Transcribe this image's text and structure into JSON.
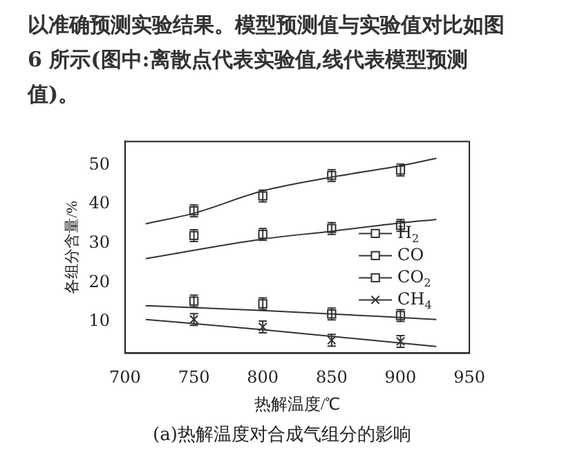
{
  "chart_data": {
    "type": "scatter",
    "xlabel": "热解温度/℃",
    "ylabel": "各组分含量/%",
    "annotations": [
      "以准确预测实验结果。模型预测值与实验值对比如图 6 所示(图中:离散点代表实验值,线代表模型预测值)。",
      "(a)热解温度对合成气组分的影响"
    ],
    "xlim": [
      700,
      950
    ],
    "xticks": [
      700,
      750,
      800,
      850,
      900,
      950
    ],
    "ylim": [
      2,
      56
    ],
    "yticks": [
      10,
      20,
      30,
      40,
      50
    ],
    "grid": false,
    "legend": "right",
    "x": [
      750,
      800,
      850,
      900
    ],
    "series": [
      {
        "name": "H$_{2}$",
        "marker": "square",
        "color": "#333333",
        "values": [
          38.3,
          42.1,
          47.3,
          48.7
        ],
        "errors": [
          1.5,
          1.5,
          1.5,
          1.5
        ]
      },
      {
        "name": "CO",
        "marker": "square",
        "color": "#333333",
        "values": [
          32.0,
          32.3,
          33.8,
          34.6
        ],
        "errors": [
          1.5,
          1.5,
          1.5,
          1.5
        ]
      },
      {
        "name": "CO$_{2}$",
        "marker": "square",
        "color": "#333333",
        "values": [
          15.3,
          14.6,
          12.0,
          11.6
        ],
        "errors": [
          1.5,
          1.5,
          1.5,
          1.5
        ]
      },
      {
        "name": "CH$_{4}$",
        "marker": "cross",
        "color": "#333333",
        "values": [
          10.6,
          8.7,
          5.3,
          5.0
        ],
        "errors": [
          1.5,
          1.5,
          1.5,
          1.5
        ]
      },
      {
        "type": "line",
        "color": "#333333",
        "x": [
          715,
          750,
          800,
          850,
          900,
          926
        ],
        "values": [
          35.0,
          37.7,
          43.4,
          46.9,
          49.8,
          51.7
        ]
      },
      {
        "type": "line",
        "color": "#333333",
        "x": [
          715,
          800,
          850,
          900,
          926
        ],
        "values": [
          26.1,
          31.1,
          33.1,
          35.2,
          36.1
        ]
      },
      {
        "type": "line",
        "color": "#333333",
        "x": [
          715,
          800,
          926
        ],
        "values": [
          14.1,
          12.9,
          10.6
        ]
      },
      {
        "type": "line",
        "color": "#333333",
        "x": [
          715,
          800,
          926
        ],
        "values": [
          10.6,
          8.0,
          3.7
        ]
      }
    ]
  }
}
